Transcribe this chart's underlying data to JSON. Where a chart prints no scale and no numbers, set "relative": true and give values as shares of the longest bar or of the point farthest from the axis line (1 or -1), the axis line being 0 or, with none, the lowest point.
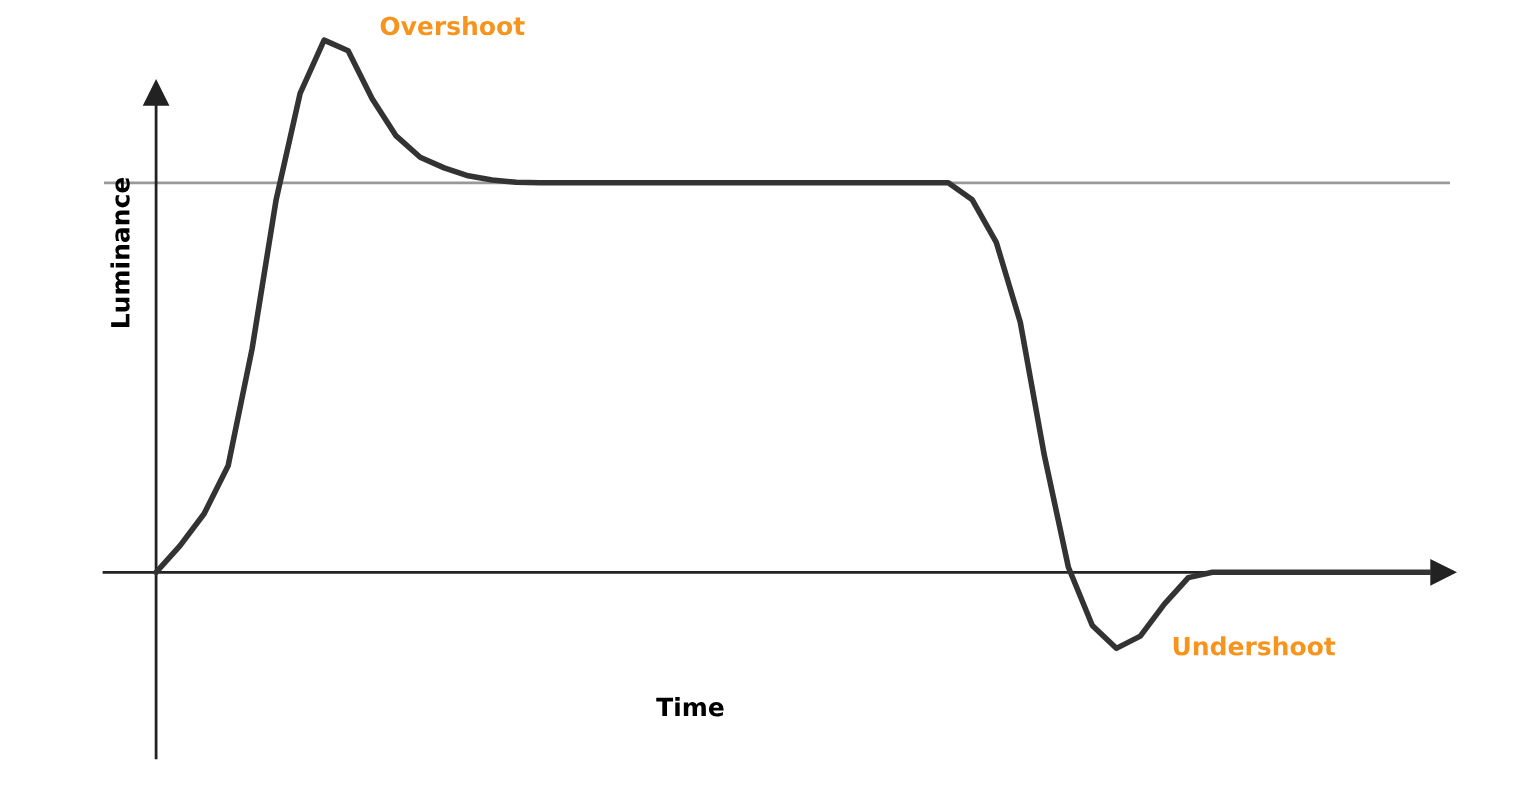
{
  "chart_data": {
    "type": "line",
    "relative": true,
    "xlabel": "Time",
    "ylabel": "Luminance",
    "color": "#333333",
    "categories": [
      null,
      null,
      null,
      null,
      null,
      null,
      null,
      null,
      null,
      null,
      null,
      null,
      null,
      null,
      null,
      null,
      null,
      null,
      null,
      null,
      null,
      null,
      null,
      null,
      null,
      null,
      null,
      null,
      null,
      null,
      null,
      null,
      null,
      null,
      null,
      null,
      null,
      null,
      null,
      null,
      null,
      null,
      null,
      null,
      null,
      null,
      null,
      null,
      null,
      null,
      null,
      null,
      null,
      null
    ],
    "values": [
      0,
      0.05,
      0.11,
      0.2,
      0.42,
      0.7,
      0.9,
      1.0,
      0.98,
      0.89,
      0.82,
      0.78,
      0.76,
      0.745,
      0.737,
      0.733,
      0.732,
      0.732,
      0.732,
      0.732,
      0.732,
      0.732,
      0.732,
      0.732,
      0.732,
      0.732,
      0.732,
      0.732,
      0.732,
      0.732,
      0.732,
      0.732,
      0.732,
      0.732,
      0.7,
      0.62,
      0.47,
      0.22,
      0.01,
      -0.1,
      -0.143,
      -0.12,
      -0.06,
      -0.01,
      0,
      0,
      0,
      0,
      0,
      0,
      0,
      0,
      0,
      0
    ],
    "ref_lines": [
      {
        "axis": "y",
        "value": 0.732,
        "color": "#999999"
      }
    ],
    "annotations": [
      "Overshoot",
      "Undershoot"
    ],
    "marker": "none",
    "line_style": "solid"
  }
}
